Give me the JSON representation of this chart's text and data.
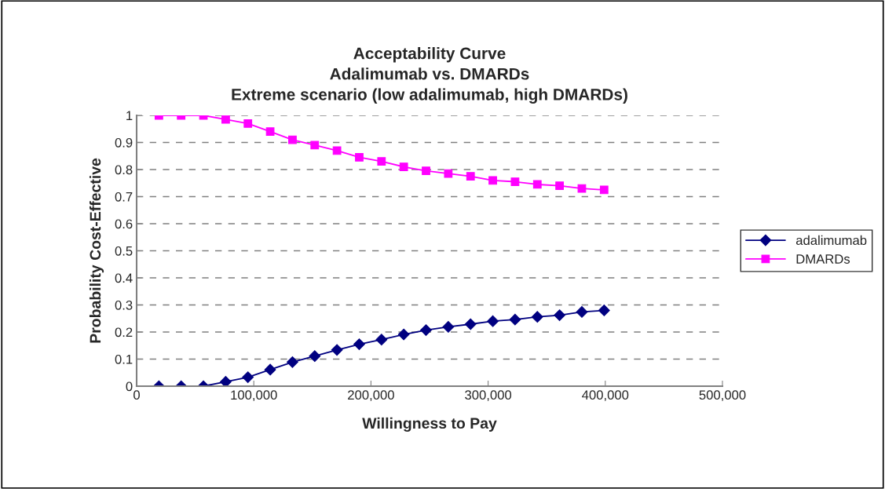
{
  "chart_data": {
    "type": "line",
    "title": "Acceptability Curve\nAdalimumab vs. DMARDs\nExtreme scenario (low adalimumab, high DMARDs)",
    "xlabel": "Willingness to Pay",
    "ylabel": "Probability Cost-Effective",
    "x": [
      19000,
      38000,
      57000,
      76000,
      95000,
      114000,
      133000,
      152000,
      171000,
      190000,
      209000,
      228000,
      247000,
      266000,
      285000,
      304000,
      323000,
      342000,
      361000,
      380000,
      399000
    ],
    "series": [
      {
        "name": "adalimumab",
        "color": "#000080",
        "marker": "diamond",
        "values": [
          0,
          0,
          0,
          0.016,
          0.033,
          0.061,
          0.089,
          0.111,
          0.134,
          0.155,
          0.172,
          0.191,
          0.207,
          0.219,
          0.229,
          0.24,
          0.246,
          0.256,
          0.262,
          0.274,
          0.28
        ]
      },
      {
        "name": "DMARDs",
        "color": "#ff00ff",
        "marker": "square",
        "values": [
          1,
          1,
          1,
          0.985,
          0.97,
          0.94,
          0.91,
          0.89,
          0.87,
          0.845,
          0.83,
          0.81,
          0.795,
          0.785,
          0.775,
          0.76,
          0.755,
          0.745,
          0.74,
          0.73,
          0.725
        ]
      }
    ],
    "xlim": [
      0,
      500000
    ],
    "xticks": [
      {
        "value": 0,
        "label": "0"
      },
      {
        "value": 100000,
        "label": "100,000"
      },
      {
        "value": 200000,
        "label": "200,000"
      },
      {
        "value": 300000,
        "label": "300,000"
      },
      {
        "value": 400000,
        "label": "400,000"
      },
      {
        "value": 500000,
        "label": "500,000"
      }
    ],
    "ylim": [
      0,
      1
    ],
    "yticks": [
      0,
      0.1,
      0.2,
      0.3,
      0.4,
      0.5,
      0.6,
      0.7,
      0.8,
      0.9,
      1
    ],
    "grid": "y",
    "legend": "right",
    "line_style": "solid"
  }
}
